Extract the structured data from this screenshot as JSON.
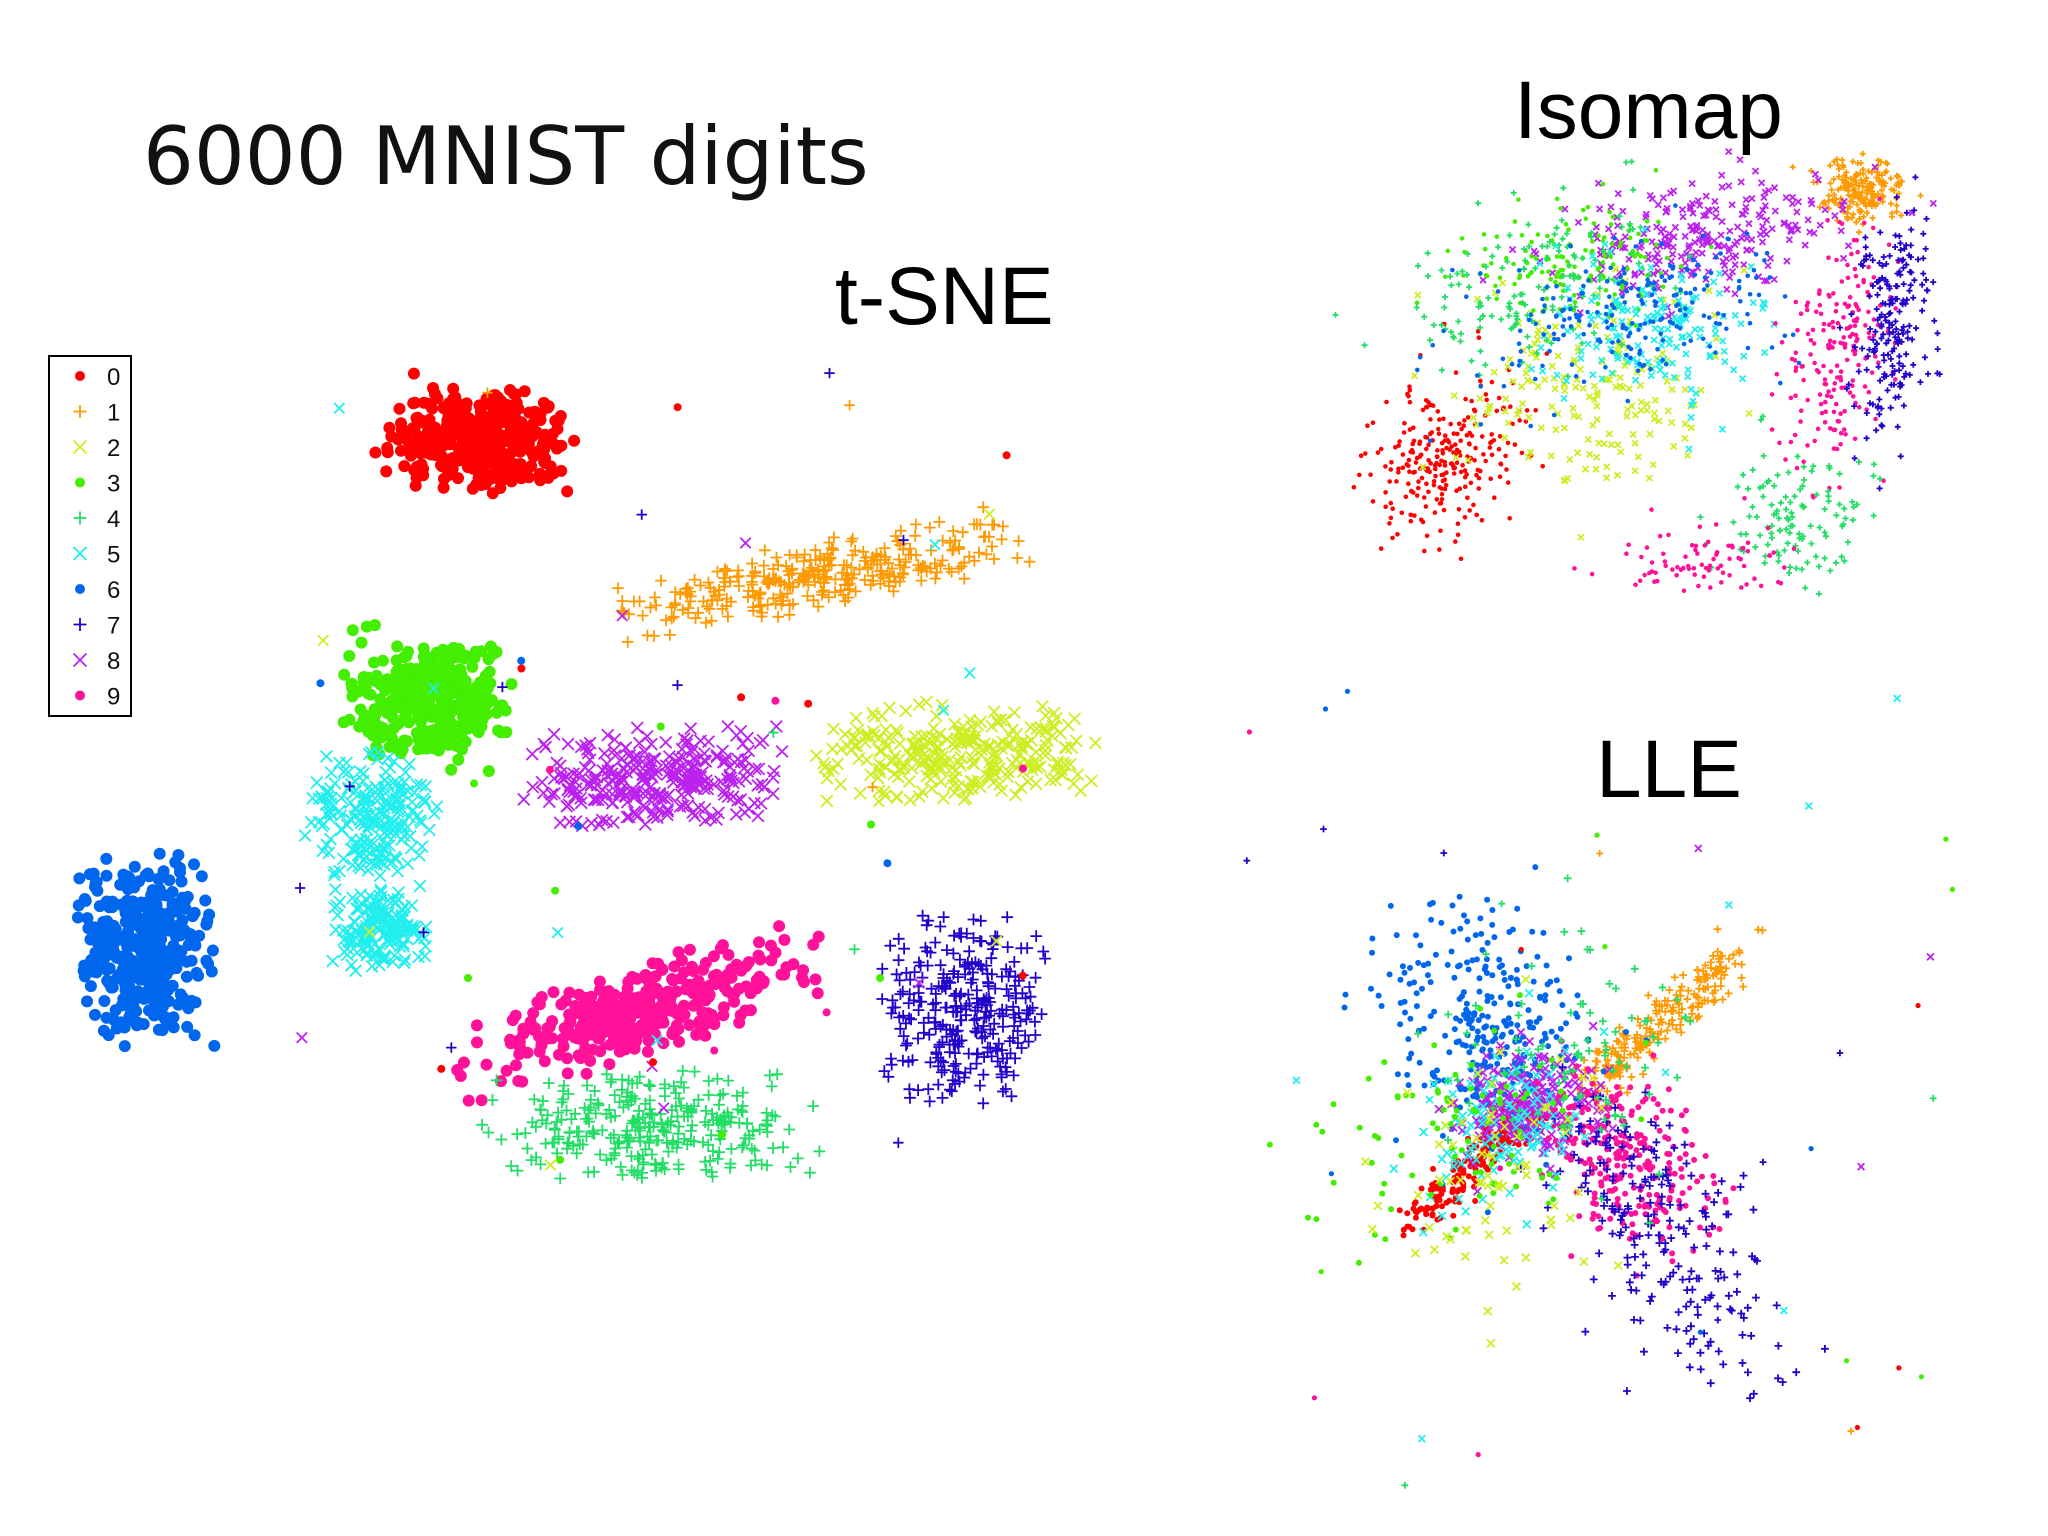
{
  "slide": {
    "title": "6000 MNIST digits"
  },
  "chart_data": [
    {
      "type": "scatter",
      "title": "t-SNE",
      "legend": {
        "placement": "top-left",
        "entries": [
          "0",
          "1",
          "2",
          "3",
          "4",
          "5",
          "6",
          "7",
          "8",
          "9"
        ]
      },
      "grid": false,
      "axes_visible": false
    },
    {
      "type": "scatter",
      "title": "Isomap",
      "grid": false,
      "axes_visible": false
    },
    {
      "type": "scatter",
      "title": "LLE",
      "grid": false,
      "axes_visible": false
    }
  ],
  "digit_styles": [
    {
      "digit": "0",
      "color": "#ff0000",
      "marker": "dot"
    },
    {
      "digit": "1",
      "color": "#ff9900",
      "marker": "plus"
    },
    {
      "digit": "2",
      "color": "#ccee22",
      "marker": "cross"
    },
    {
      "digit": "3",
      "color": "#44ee00",
      "marker": "dot"
    },
    {
      "digit": "4",
      "color": "#22dd66",
      "marker": "plus"
    },
    {
      "digit": "5",
      "color": "#22eeee",
      "marker": "cross"
    },
    {
      "digit": "6",
      "color": "#0066ee",
      "marker": "dot"
    },
    {
      "digit": "7",
      "color": "#2200cc",
      "marker": "plus"
    },
    {
      "digit": "8",
      "color": "#bb22ee",
      "marker": "cross"
    },
    {
      "digit": "9",
      "color": "#ff1199",
      "marker": "dot"
    }
  ]
}
